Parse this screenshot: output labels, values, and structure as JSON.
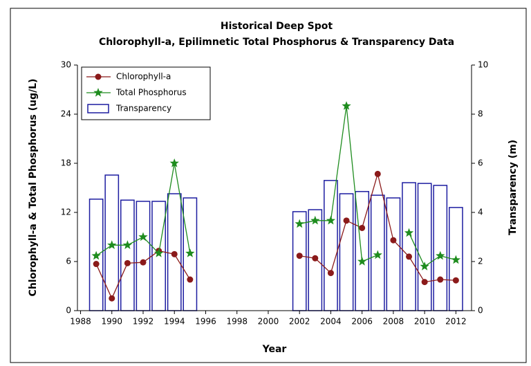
{
  "chart_data": {
    "type": "bar-line",
    "title": "Historical Deep Spot",
    "subtitle": "Chlorophyll-a, Epilimnetic Total Phosphorus & Transparency Data",
    "x_label": "Year",
    "y_label": "Chlorophyll-a & Total Phosphorus (ug/L)",
    "y2_label": "Transparency (m)",
    "x": [
      1989,
      1990,
      1991,
      1992,
      1993,
      1994,
      1995,
      1996,
      1997,
      1998,
      1999,
      2000,
      2001,
      2002,
      2003,
      2004,
      2005,
      2006,
      2007,
      2008,
      2009,
      2010,
      2011,
      2012
    ],
    "series": [
      {
        "name": "Chlorophyll-a",
        "kind": "line",
        "marker": "circle",
        "color": "#8b1a1a",
        "values": [
          5.7,
          1.5,
          5.8,
          5.9,
          7.3,
          6.9,
          3.8,
          null,
          null,
          null,
          null,
          null,
          null,
          6.7,
          6.4,
          4.6,
          11.0,
          10.1,
          16.7,
          8.6,
          6.6,
          3.5,
          3.8,
          3.7
        ]
      },
      {
        "name": "Total Phosphorus",
        "kind": "line",
        "marker": "star",
        "color": "#1e8c1e",
        "values": [
          6.7,
          8.0,
          8.0,
          9.0,
          7.0,
          18.0,
          7.0,
          null,
          null,
          null,
          null,
          null,
          null,
          10.6,
          11.0,
          11.0,
          25.0,
          6.0,
          6.8,
          null,
          9.5,
          5.4,
          6.7,
          6.2
        ]
      },
      {
        "name": "Transparency",
        "kind": "bar",
        "axis": "y2",
        "color": "#1c1ca0",
        "values": [
          4.54,
          5.52,
          4.5,
          4.45,
          4.45,
          4.76,
          4.59,
          null,
          null,
          null,
          null,
          null,
          null,
          4.03,
          4.11,
          5.3,
          4.76,
          4.85,
          4.7,
          4.59,
          5.21,
          5.18,
          5.1,
          4.2
        ]
      }
    ],
    "xlim": [
      1987.8,
      2013
    ],
    "xticks": [
      1988,
      1990,
      1992,
      1994,
      1996,
      1998,
      2000,
      2002,
      2004,
      2006,
      2008,
      2010,
      2012
    ],
    "ylim": [
      0,
      30
    ],
    "yticks": [
      0,
      6,
      12,
      18,
      24,
      30
    ],
    "y2lim": [
      0,
      10
    ],
    "y2ticks": [
      0,
      2,
      4,
      6,
      8,
      10
    ],
    "legend": "top-left"
  }
}
